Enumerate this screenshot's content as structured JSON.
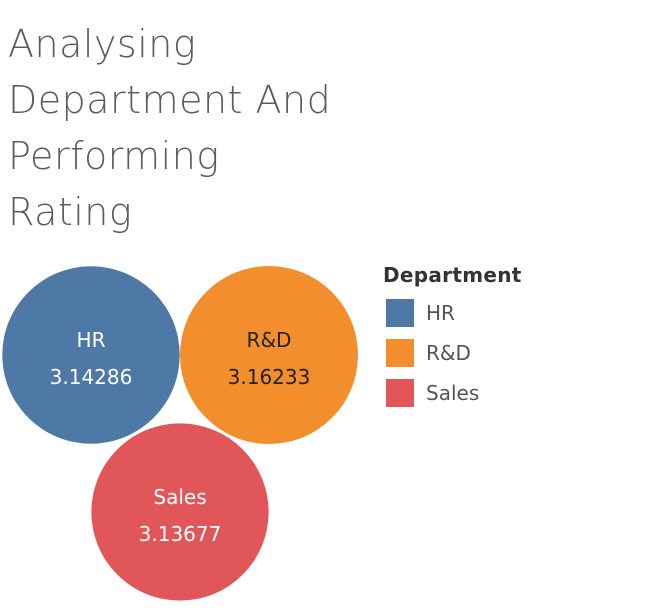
{
  "title_lines": [
    "Analysing",
    "Department And",
    "Performing",
    "Rating"
  ],
  "legend": {
    "title": "Department"
  },
  "chart_data": {
    "type": "bubble",
    "categories": [
      "HR",
      "R&D",
      "Sales"
    ],
    "values": [
      3.14286,
      3.16233,
      3.13677
    ],
    "value_labels": [
      "3.14286",
      "3.16233",
      "3.13677"
    ],
    "colors": [
      "#4e79a7",
      "#f28e2b",
      "#e15759"
    ],
    "label_colors": [
      "#ffffff",
      "#222222",
      "#ffffff"
    ],
    "legend_title": "Department"
  }
}
